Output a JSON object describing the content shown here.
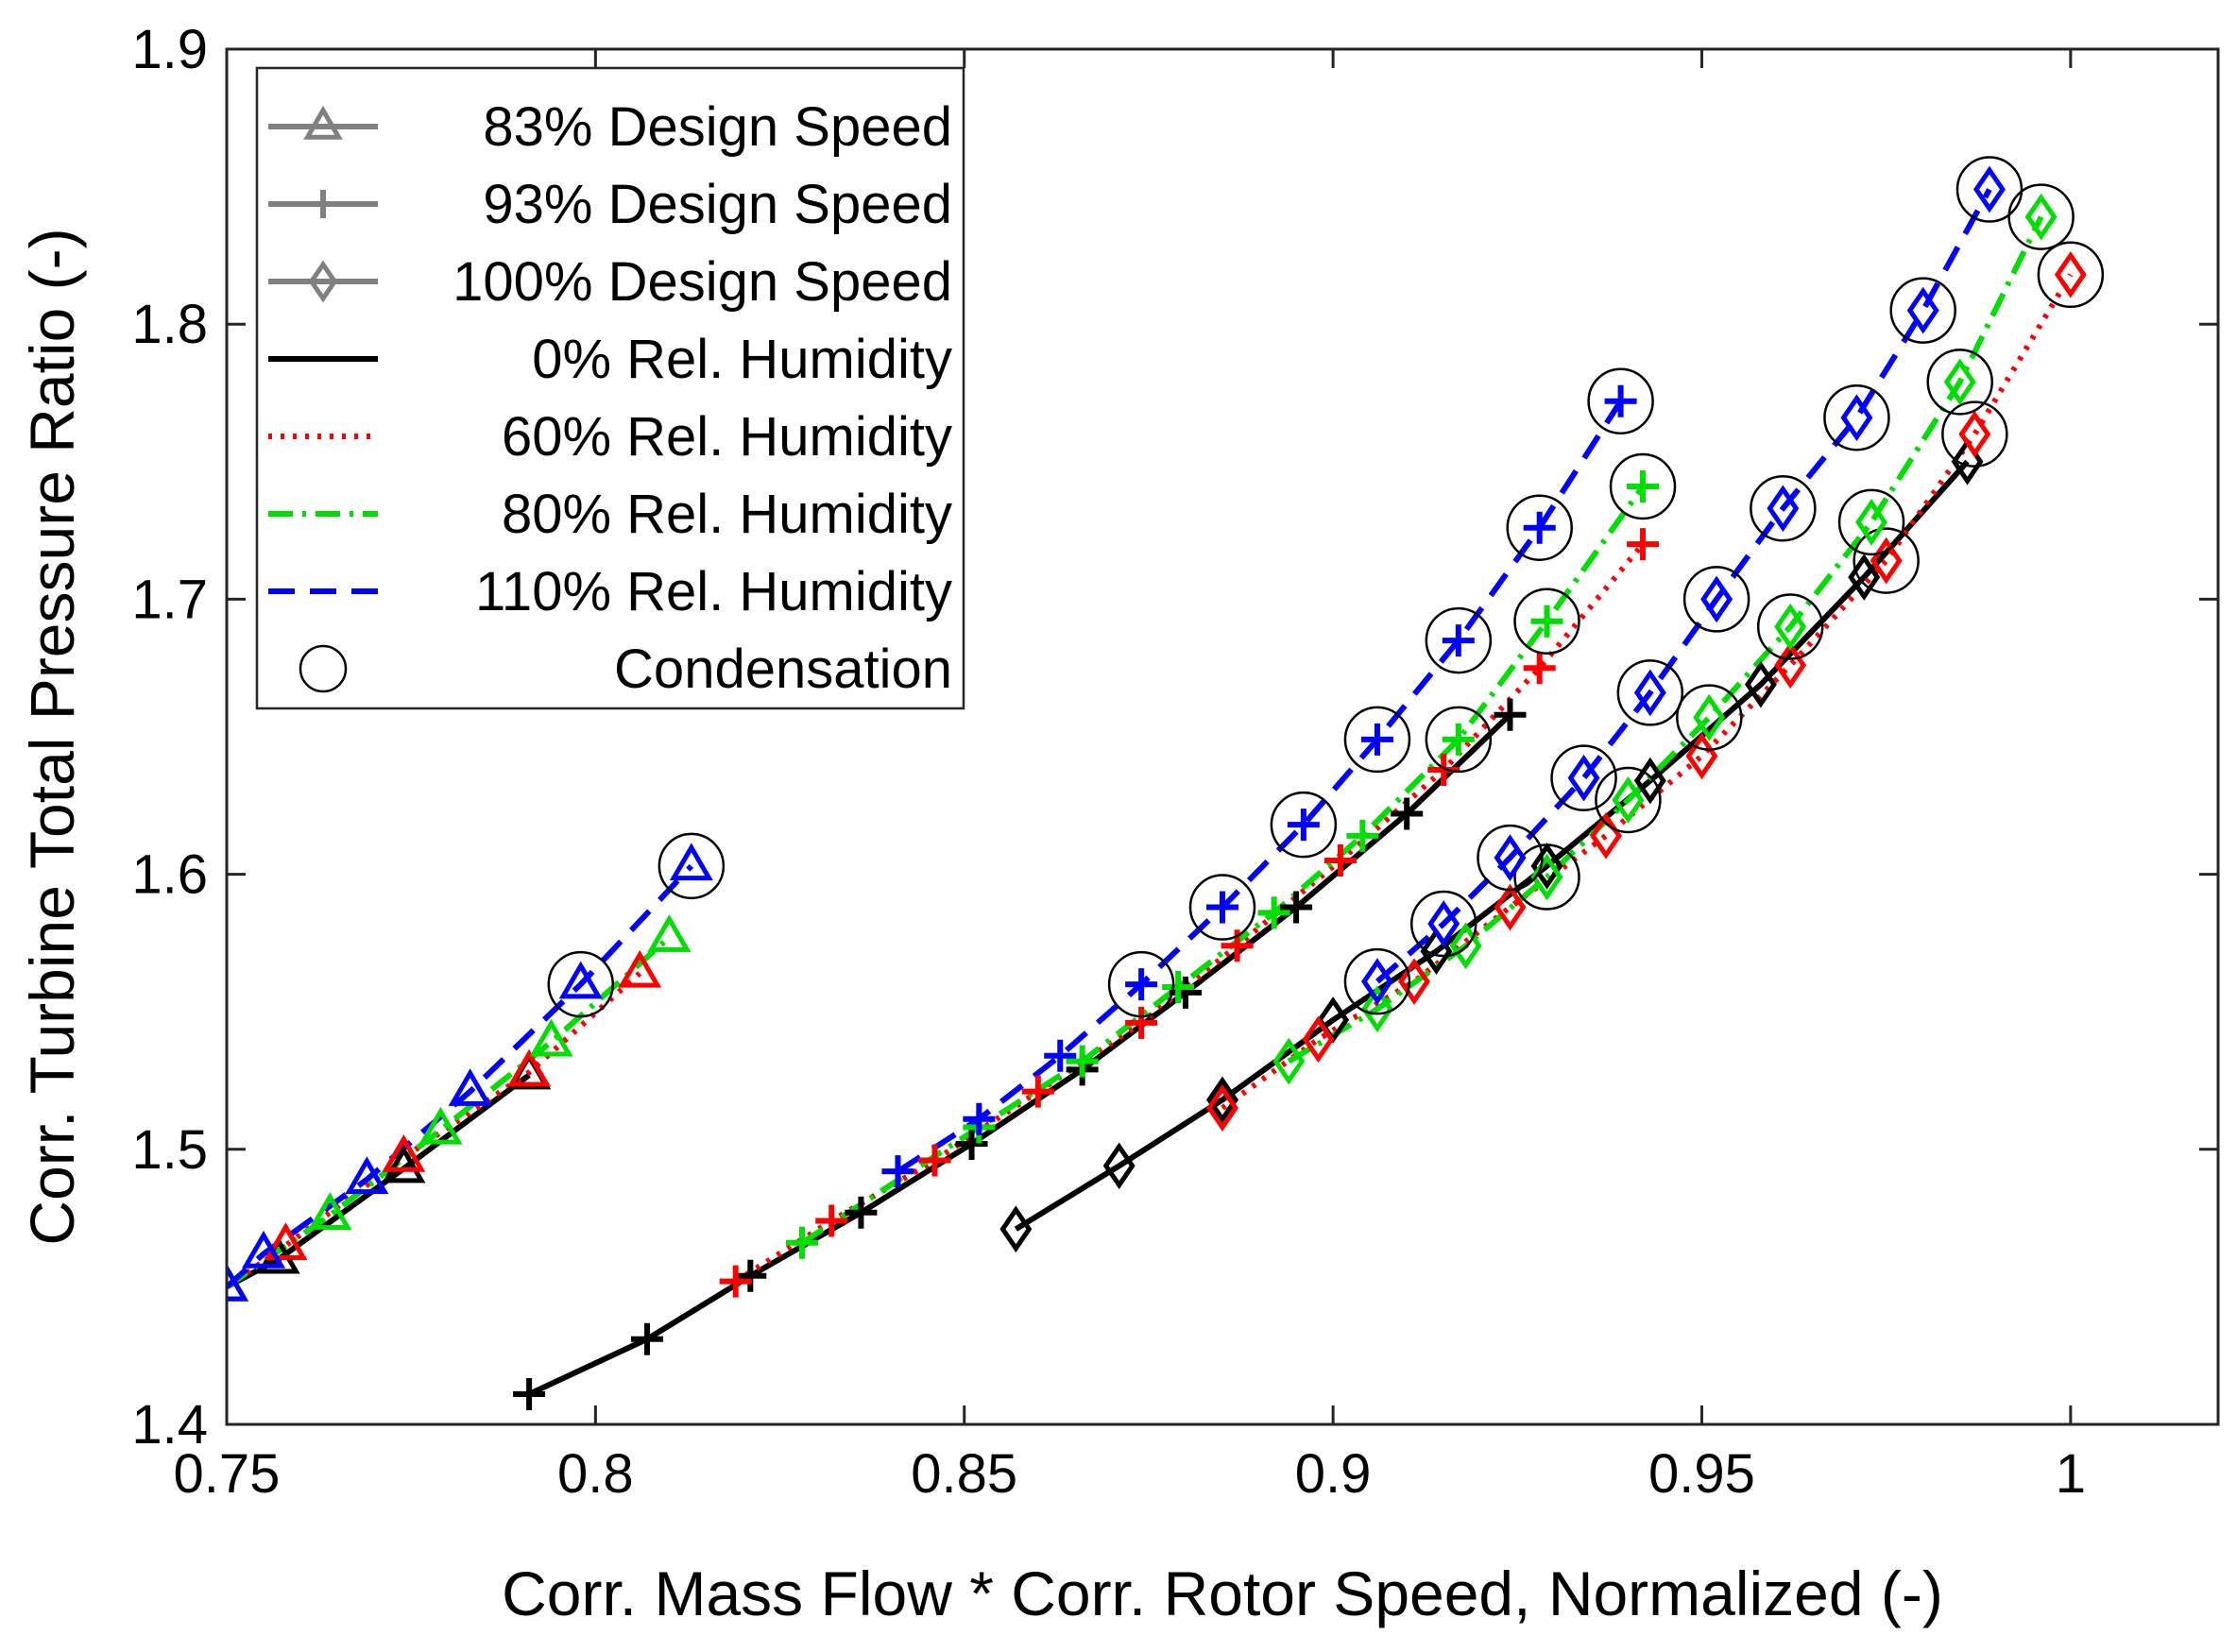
{
  "chart_data": {
    "type": "line",
    "xlabel": "Corr. Mass Flow * Corr. Rotor Speed, Normalized (-)",
    "ylabel": "Corr. Turbine Total Pressure Ratio (-)",
    "xlim": [
      0.75,
      1.02
    ],
    "ylim": [
      1.4,
      1.9
    ],
    "xticks": [
      0.75,
      0.8,
      0.85,
      0.9,
      0.95,
      1
    ],
    "xtick_labels": [
      "0.75",
      "0.8",
      "0.85",
      "0.9",
      "0.95",
      "1"
    ],
    "yticks": [
      1.4,
      1.5,
      1.6,
      1.7,
      1.8,
      1.9
    ],
    "ytick_labels": [
      "1.4",
      "1.5",
      "1.6",
      "1.7",
      "1.8",
      "1.9"
    ],
    "grid": false,
    "legend_position": "top-left",
    "legend": [
      {
        "label": "83% Design Speed",
        "kind": "speed",
        "marker": "triangle",
        "line": "solid",
        "color": "#808080"
      },
      {
        "label": "93% Design Speed",
        "kind": "speed",
        "marker": "plus",
        "line": "solid",
        "color": "#808080"
      },
      {
        "label": "100% Design Speed",
        "kind": "speed",
        "marker": "diamond",
        "line": "solid",
        "color": "#808080"
      },
      {
        "label": "0% Rel. Humidity",
        "kind": "humidity",
        "line": "solid",
        "color": "#000000"
      },
      {
        "label": "60% Rel. Humidity",
        "kind": "humidity",
        "line": "dotted",
        "color": "#ff0000"
      },
      {
        "label": "80% Rel. Humidity",
        "kind": "humidity",
        "line": "dashdot",
        "color": "#00dd00"
      },
      {
        "label": "110% Rel. Humidity",
        "kind": "humidity",
        "line": "dashed",
        "color": "#0000ff"
      },
      {
        "label": "Condensation",
        "kind": "marker",
        "marker": "circle",
        "color": "#000000"
      }
    ],
    "series": [
      {
        "speed": "83%",
        "humidity": "0%",
        "marker": "triangle",
        "color": "#000000",
        "line": "solid",
        "points": [
          [
            0.75,
            1.45
          ],
          [
            0.757,
            1.46
          ],
          [
            0.774,
            1.493
          ],
          [
            0.791,
            1.527
          ]
        ],
        "condensation": []
      },
      {
        "speed": "83%",
        "humidity": "60%",
        "marker": "triangle",
        "color": "#ff0000",
        "line": "dotted",
        "points": [
          [
            0.75,
            1.45
          ],
          [
            0.758,
            1.465
          ],
          [
            0.774,
            1.497
          ],
          [
            0.791,
            1.528
          ],
          [
            0.806,
            1.564
          ]
        ],
        "condensation": []
      },
      {
        "speed": "83%",
        "humidity": "80%",
        "marker": "triangle",
        "color": "#00dd00",
        "line": "dashdot",
        "points": [
          [
            0.75,
            1.45
          ],
          [
            0.764,
            1.476
          ],
          [
            0.779,
            1.507
          ],
          [
            0.794,
            1.539
          ],
          [
            0.81,
            1.577
          ]
        ],
        "condensation": []
      },
      {
        "speed": "83%",
        "humidity": "110%",
        "marker": "triangle",
        "color": "#0000ff",
        "line": "dashed",
        "points": [
          [
            0.75,
            1.45
          ],
          [
            0.755,
            1.462
          ],
          [
            0.769,
            1.489
          ],
          [
            0.783,
            1.521
          ],
          [
            0.798,
            1.56
          ],
          [
            0.813,
            1.603
          ]
        ],
        "condensation": [
          [
            0.798,
            1.56
          ],
          [
            0.813,
            1.603
          ]
        ]
      },
      {
        "speed": "93%",
        "humidity": "0%",
        "marker": "plus",
        "color": "#000000",
        "line": "solid",
        "points": [
          [
            0.791,
            1.411
          ],
          [
            0.807,
            1.431
          ],
          [
            0.821,
            1.454
          ],
          [
            0.836,
            1.477
          ],
          [
            0.851,
            1.502
          ],
          [
            0.866,
            1.529
          ],
          [
            0.88,
            1.557
          ],
          [
            0.895,
            1.588
          ],
          [
            0.91,
            1.622
          ],
          [
            0.924,
            1.658
          ]
        ],
        "condensation": []
      },
      {
        "speed": "93%",
        "humidity": "60%",
        "marker": "plus",
        "color": "#ff0000",
        "line": "dotted",
        "points": [
          [
            0.819,
            1.452
          ],
          [
            0.832,
            1.474
          ],
          [
            0.846,
            1.496
          ],
          [
            0.86,
            1.521
          ],
          [
            0.874,
            1.546
          ],
          [
            0.887,
            1.574
          ],
          [
            0.901,
            1.605
          ],
          [
            0.915,
            1.638
          ],
          [
            0.928,
            1.675
          ],
          [
            0.942,
            1.72
          ]
        ],
        "condensation": []
      },
      {
        "speed": "93%",
        "humidity": "80%",
        "marker": "plus",
        "color": "#00dd00",
        "line": "dashdot",
        "points": [
          [
            0.828,
            1.466
          ],
          [
            0.852,
            1.508
          ],
          [
            0.866,
            1.532
          ],
          [
            0.879,
            1.559
          ],
          [
            0.892,
            1.586
          ],
          [
            0.904,
            1.614
          ],
          [
            0.917,
            1.649
          ],
          [
            0.929,
            1.692
          ],
          [
            0.942,
            1.741
          ]
        ],
        "condensation": [
          [
            0.917,
            1.649
          ],
          [
            0.929,
            1.692
          ],
          [
            0.942,
            1.741
          ]
        ]
      },
      {
        "speed": "93%",
        "humidity": "110%",
        "marker": "plus",
        "color": "#0000ff",
        "line": "dashed",
        "points": [
          [
            0.841,
            1.492
          ],
          [
            0.852,
            1.511
          ],
          [
            0.863,
            1.534
          ],
          [
            0.874,
            1.56
          ],
          [
            0.885,
            1.588
          ],
          [
            0.896,
            1.618
          ],
          [
            0.906,
            1.649
          ],
          [
            0.917,
            1.685
          ],
          [
            0.928,
            1.726
          ],
          [
            0.939,
            1.772
          ]
        ],
        "condensation": [
          [
            0.874,
            1.56
          ],
          [
            0.885,
            1.588
          ],
          [
            0.896,
            1.618
          ],
          [
            0.906,
            1.649
          ],
          [
            0.917,
            1.685
          ],
          [
            0.928,
            1.726
          ],
          [
            0.939,
            1.772
          ]
        ]
      },
      {
        "speed": "100%",
        "humidity": "0%",
        "marker": "diamond",
        "color": "#000000",
        "line": "solid",
        "points": [
          [
            0.857,
            1.471
          ],
          [
            0.871,
            1.494
          ],
          [
            0.885,
            1.518
          ],
          [
            0.9,
            1.547
          ],
          [
            0.914,
            1.572
          ],
          [
            0.929,
            1.603
          ],
          [
            0.943,
            1.634
          ],
          [
            0.958,
            1.669
          ],
          [
            0.972,
            1.708
          ],
          [
            0.986,
            1.75
          ]
        ],
        "condensation": []
      },
      {
        "speed": "100%",
        "humidity": "60%",
        "marker": "diamond",
        "color": "#ff0000",
        "line": "dotted",
        "points": [
          [
            0.885,
            1.515
          ],
          [
            0.898,
            1.54
          ],
          [
            0.911,
            1.561
          ],
          [
            0.924,
            1.588
          ],
          [
            0.937,
            1.614
          ],
          [
            0.95,
            1.643
          ],
          [
            0.962,
            1.676
          ],
          [
            0.975,
            1.714
          ],
          [
            0.987,
            1.76
          ],
          [
            1.0,
            1.818
          ]
        ],
        "condensation": [
          [
            0.975,
            1.714
          ],
          [
            0.987,
            1.76
          ],
          [
            1.0,
            1.818
          ]
        ]
      },
      {
        "speed": "100%",
        "humidity": "80%",
        "marker": "diamond",
        "color": "#00dd00",
        "line": "dashdot",
        "points": [
          [
            0.894,
            1.532
          ],
          [
            0.906,
            1.551
          ],
          [
            0.918,
            1.574
          ],
          [
            0.929,
            1.599
          ],
          [
            0.94,
            1.627
          ],
          [
            0.951,
            1.657
          ],
          [
            0.962,
            1.69
          ],
          [
            0.973,
            1.728
          ],
          [
            0.985,
            1.779
          ],
          [
            0.996,
            1.839
          ]
        ],
        "condensation": [
          [
            0.929,
            1.599
          ],
          [
            0.94,
            1.627
          ],
          [
            0.951,
            1.657
          ],
          [
            0.962,
            1.69
          ],
          [
            0.973,
            1.728
          ],
          [
            0.985,
            1.779
          ],
          [
            0.996,
            1.839
          ]
        ]
      },
      {
        "speed": "100%",
        "humidity": "110%",
        "marker": "diamond",
        "color": "#0000ff",
        "line": "dashed",
        "points": [
          [
            0.906,
            1.561
          ],
          [
            0.915,
            1.582
          ],
          [
            0.924,
            1.606
          ],
          [
            0.934,
            1.635
          ],
          [
            0.943,
            1.666
          ],
          [
            0.952,
            1.7
          ],
          [
            0.961,
            1.733
          ],
          [
            0.971,
            1.766
          ],
          [
            0.98,
            1.805
          ],
          [
            0.989,
            1.849
          ]
        ],
        "condensation": [
          [
            0.906,
            1.561
          ],
          [
            0.915,
            1.582
          ],
          [
            0.924,
            1.606
          ],
          [
            0.934,
            1.635
          ],
          [
            0.943,
            1.666
          ],
          [
            0.952,
            1.7
          ],
          [
            0.961,
            1.733
          ],
          [
            0.971,
            1.766
          ],
          [
            0.98,
            1.805
          ],
          [
            0.989,
            1.849
          ]
        ]
      }
    ]
  }
}
